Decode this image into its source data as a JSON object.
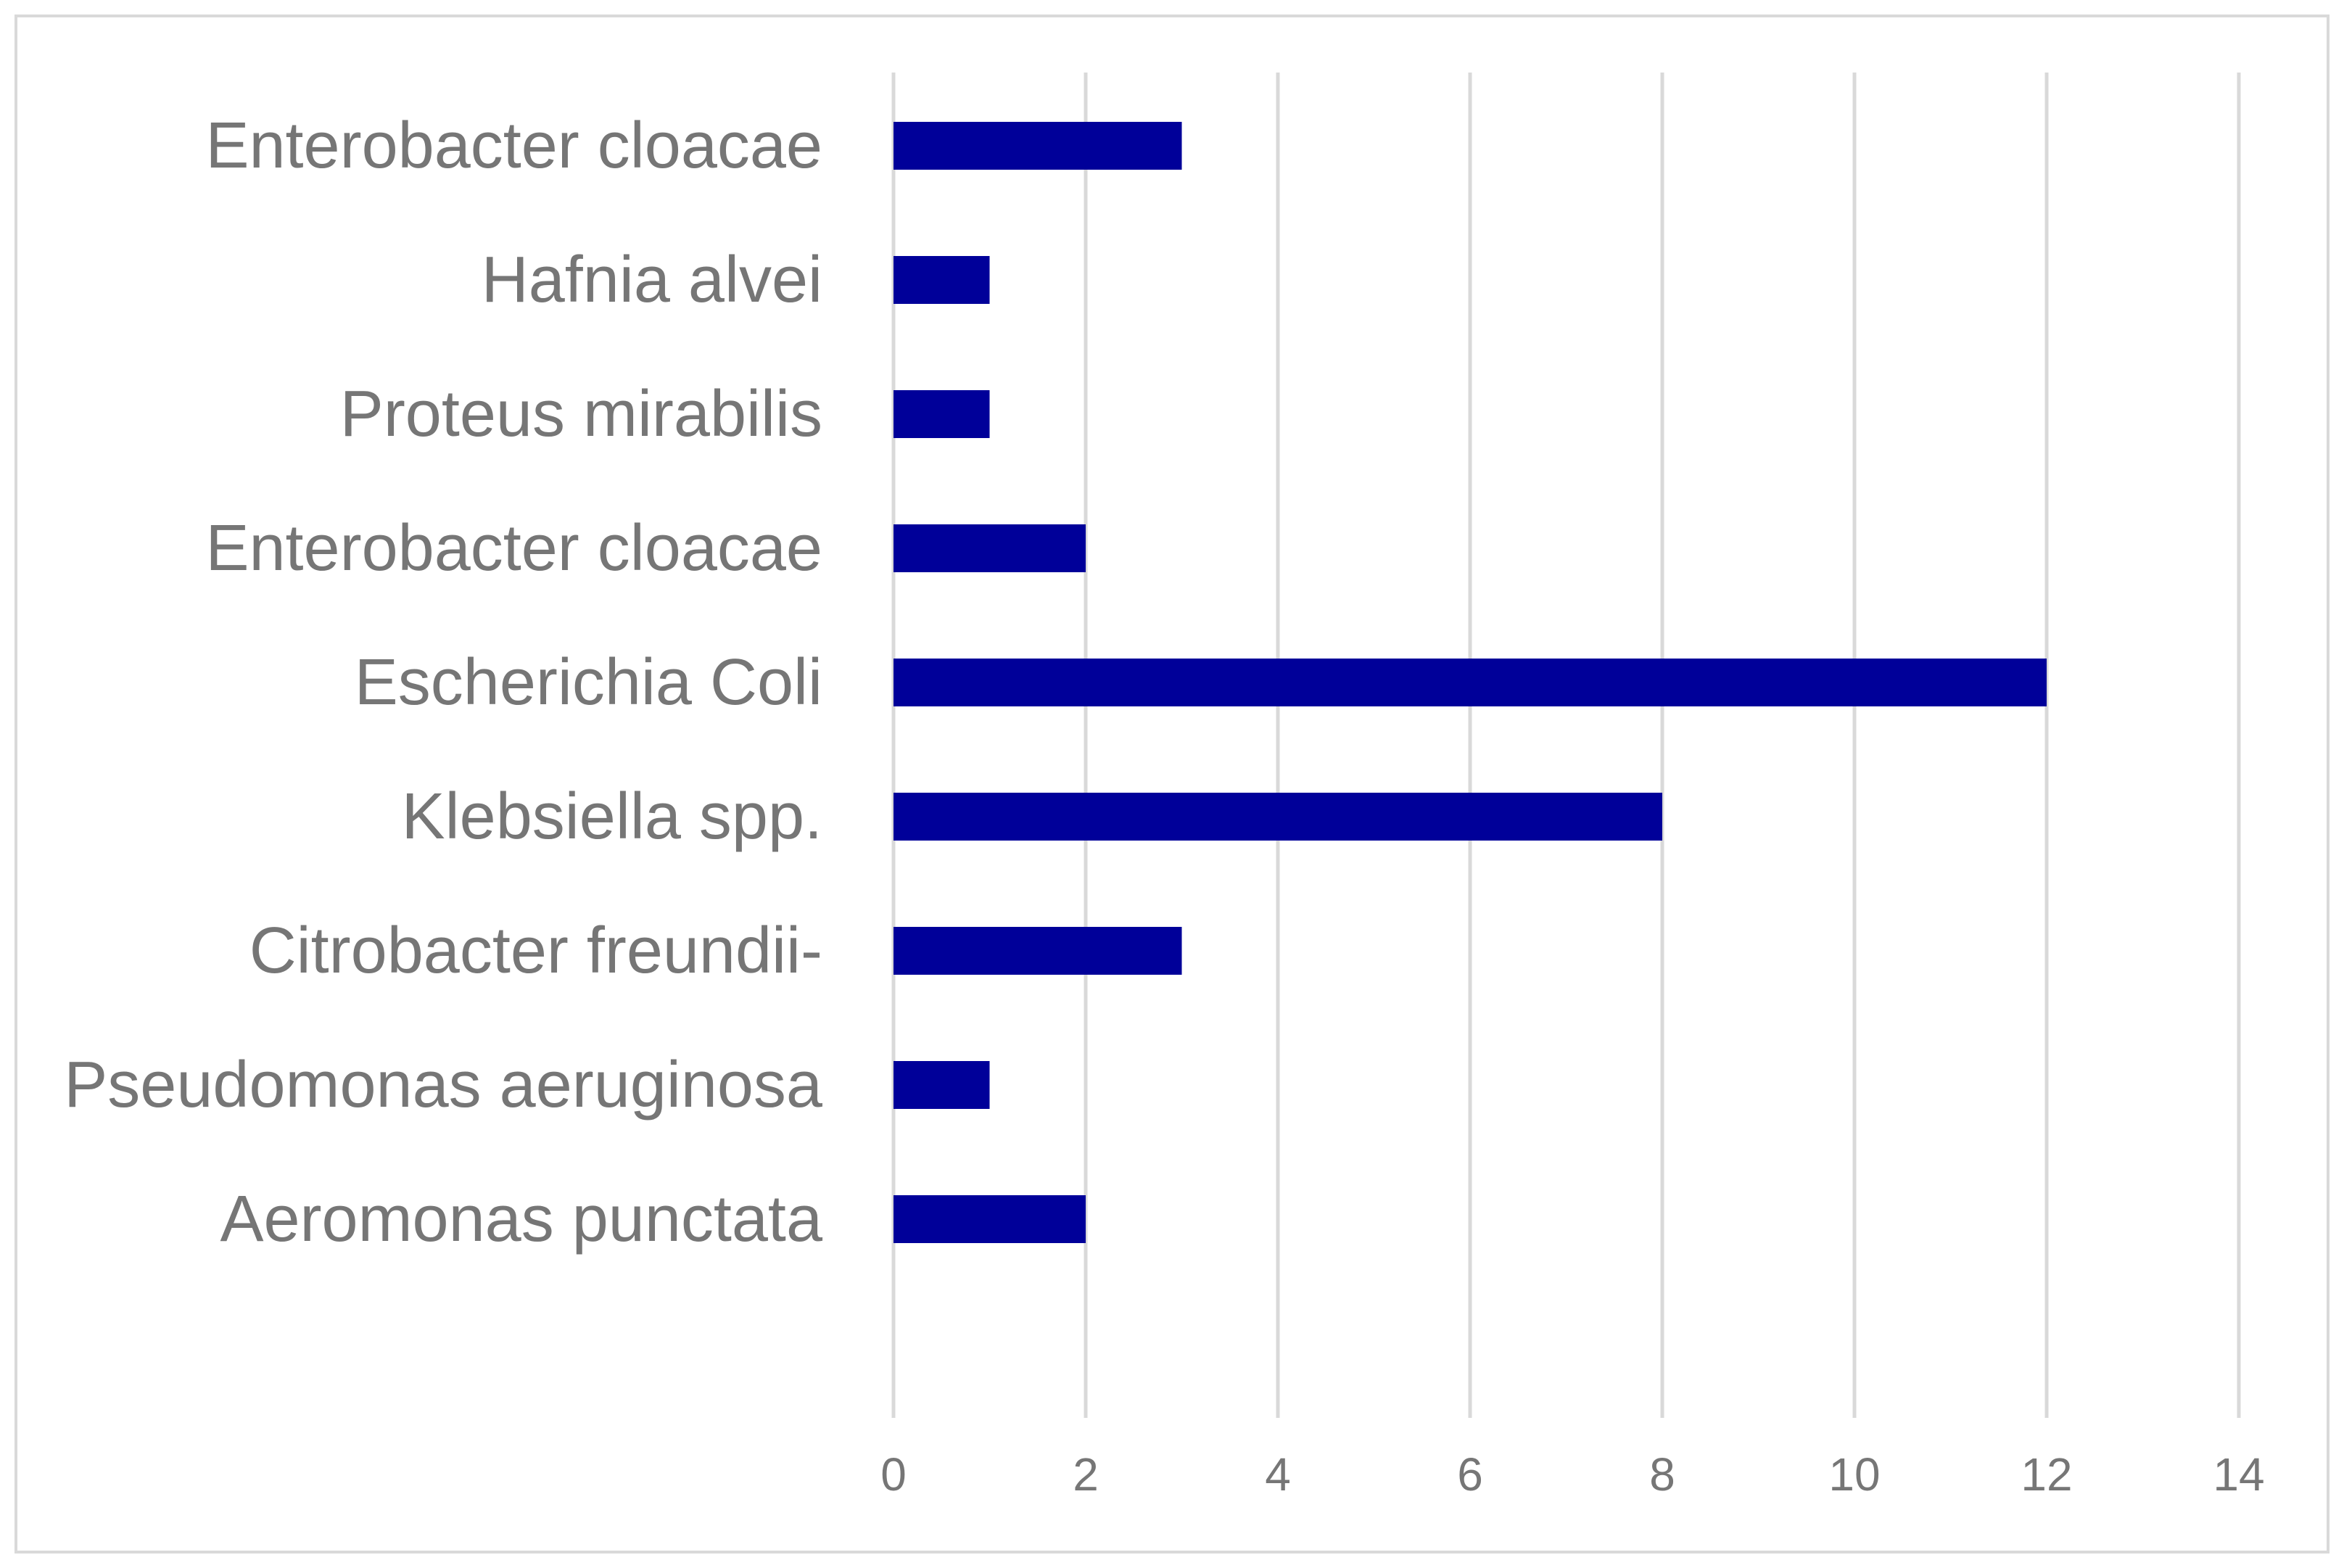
{
  "chart_data": {
    "type": "bar",
    "orientation": "horizontal",
    "categories": [
      "Enterobacter cloacae",
      "Hafnia alvei",
      "Proteus mirabilis",
      "Enterobacter cloacae",
      "Escherichia Coli",
      "Klebsiella spp.",
      "Citrobacter freundii-",
      "Pseudomonas aeruginosa",
      "Aeromonas punctata"
    ],
    "values": [
      3,
      1,
      1,
      2,
      12,
      8,
      3,
      1,
      2
    ],
    "title": "",
    "xlabel": "",
    "ylabel": "",
    "xlim": [
      0,
      14
    ],
    "ticks": [
      0,
      2,
      4,
      6,
      8,
      10,
      12,
      14
    ],
    "grid": "vertical",
    "legend": "none",
    "colors": {
      "bar": "#000099",
      "grid": "#d9d9d9",
      "text": "#767676",
      "border": "#d9d9d9"
    }
  }
}
